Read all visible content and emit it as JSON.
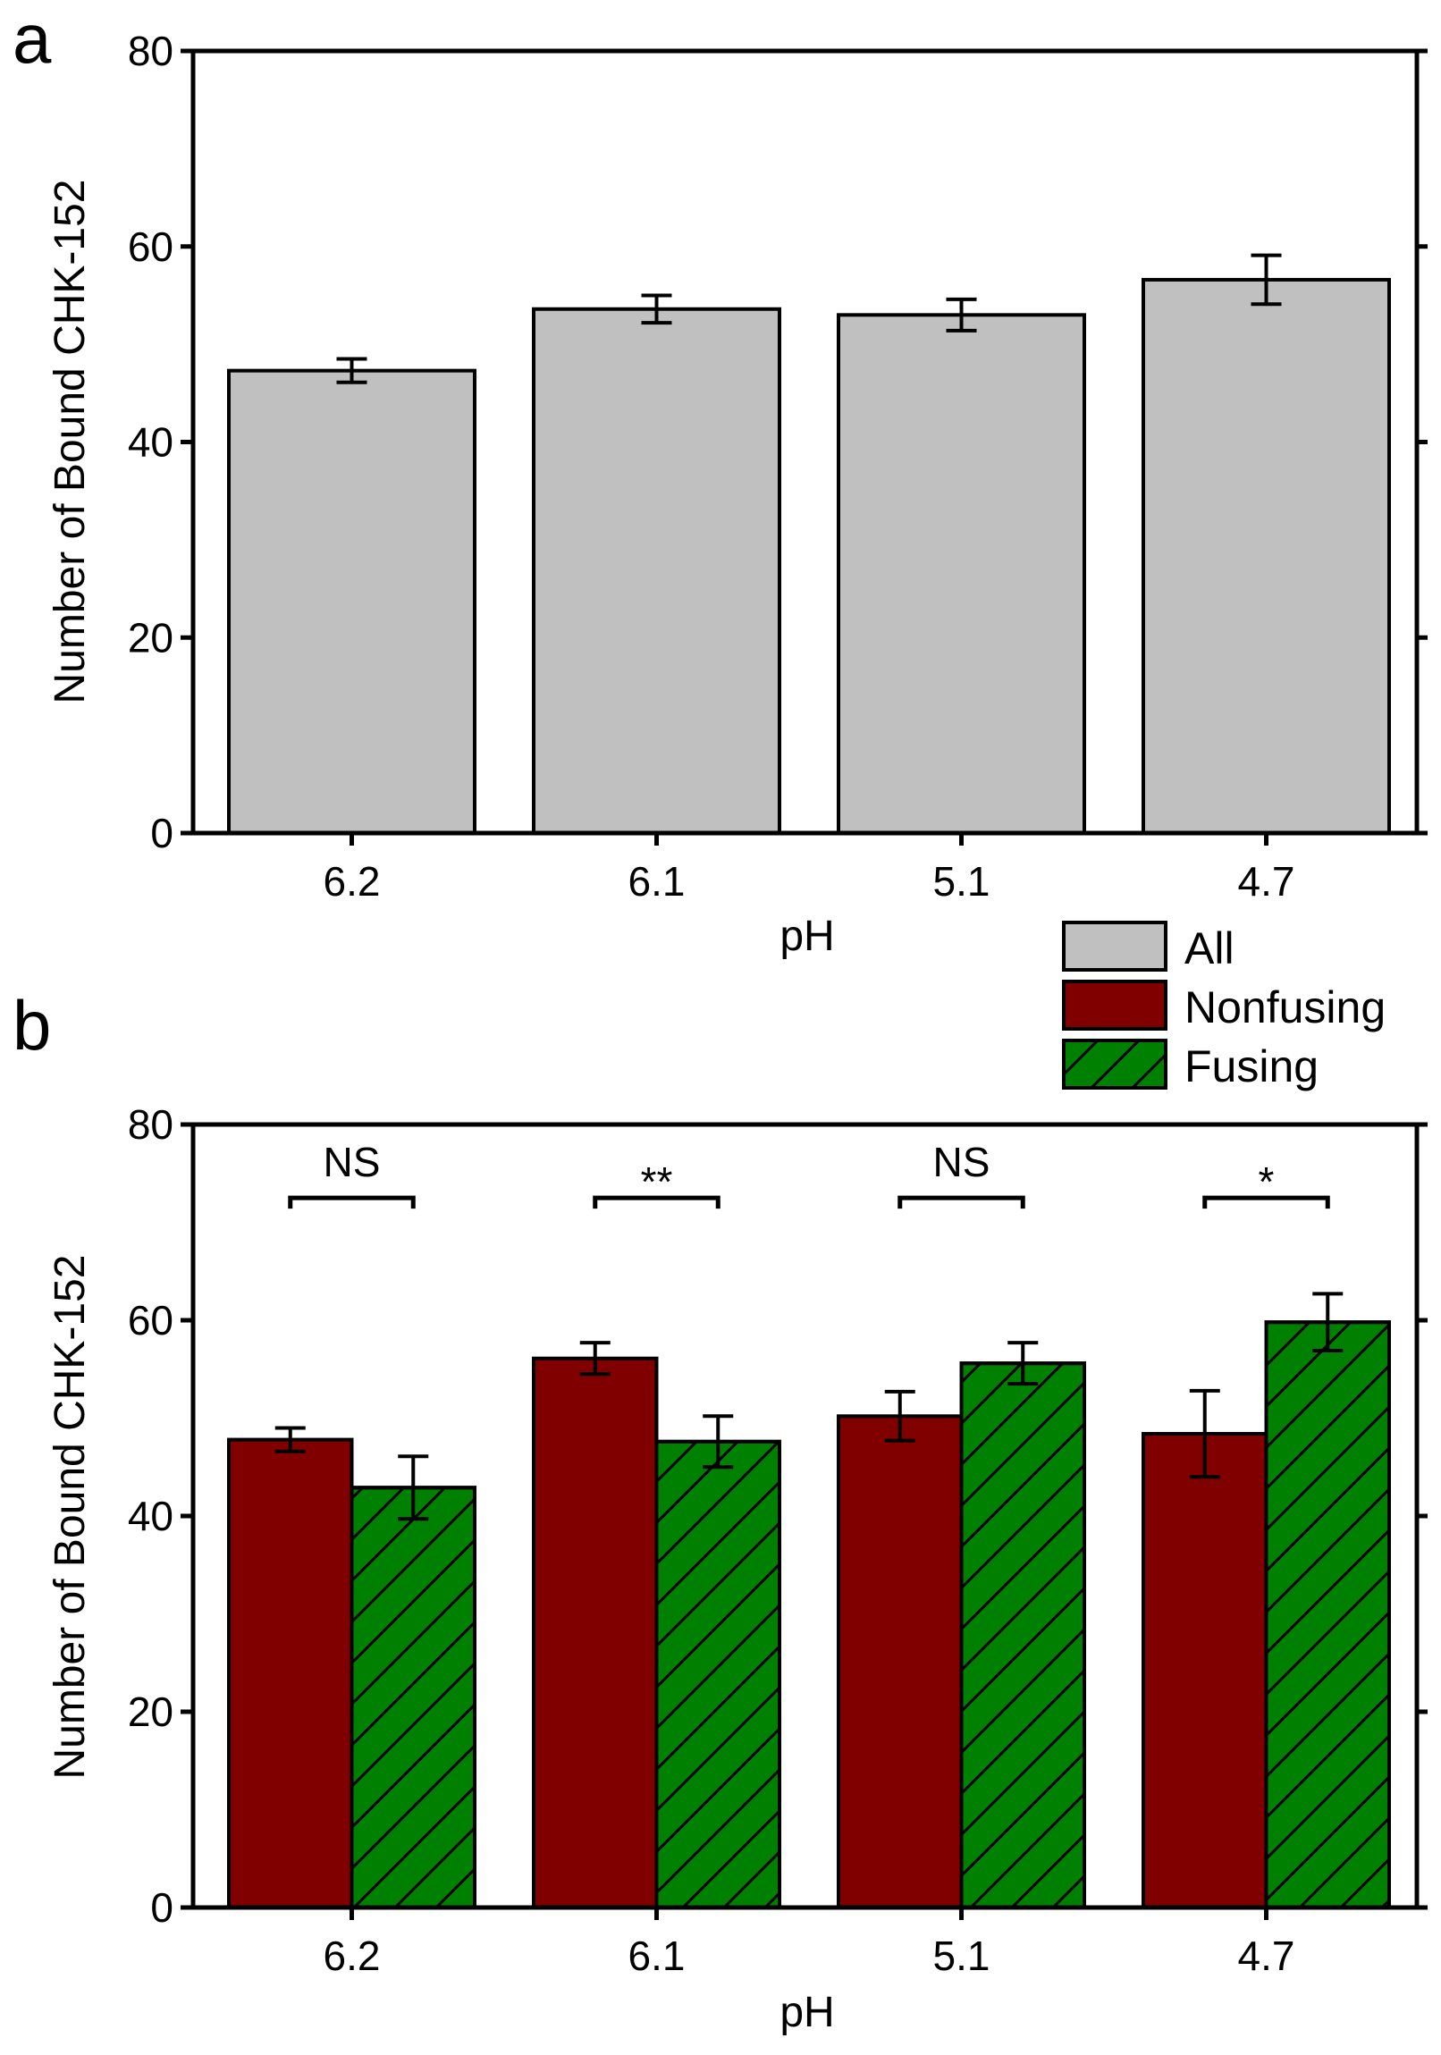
{
  "figure": {
    "legend": [
      {
        "label": "All",
        "color": "#c0c0c0",
        "hatch": false
      },
      {
        "label": "Nonfusing",
        "color": "#800000",
        "hatch": false
      },
      {
        "label": "Fusing",
        "color": "#008000",
        "hatch": true
      }
    ]
  },
  "chart_data": [
    {
      "panel": "a",
      "type": "bar",
      "title": "",
      "xlabel": "pH",
      "ylabel": "Number of Bound CHK-152",
      "ylim": [
        0,
        80
      ],
      "yticks": [
        "0",
        "20",
        "40",
        "60",
        "80"
      ],
      "categories": [
        "6.2",
        "6.1",
        "5.1",
        "4.7"
      ],
      "series": [
        {
          "name": "All",
          "color": "#c0c0c0",
          "hatch": false,
          "values": [
            47.3,
            53.6,
            53.0,
            56.6
          ],
          "errors": [
            1.2,
            1.4,
            1.6,
            2.5
          ]
        }
      ],
      "annotations": []
    },
    {
      "panel": "b",
      "type": "bar",
      "title": "",
      "xlabel": "pH",
      "ylabel": "Number of Bound CHK-152",
      "ylim": [
        0,
        80
      ],
      "yticks": [
        "0",
        "20",
        "40",
        "60",
        "80"
      ],
      "categories": [
        "6.2",
        "6.1",
        "5.1",
        "4.7"
      ],
      "series": [
        {
          "name": "Nonfusing",
          "color": "#800000",
          "hatch": false,
          "values": [
            47.8,
            56.1,
            50.2,
            48.4
          ],
          "errors": [
            1.2,
            1.6,
            2.5,
            4.4
          ]
        },
        {
          "name": "Fusing",
          "color": "#008000",
          "hatch": true,
          "values": [
            42.9,
            47.6,
            55.6,
            59.8
          ],
          "errors": [
            3.2,
            2.6,
            2.1,
            2.9
          ]
        }
      ],
      "annotations": [
        "NS",
        "**",
        "NS",
        "*"
      ]
    }
  ]
}
